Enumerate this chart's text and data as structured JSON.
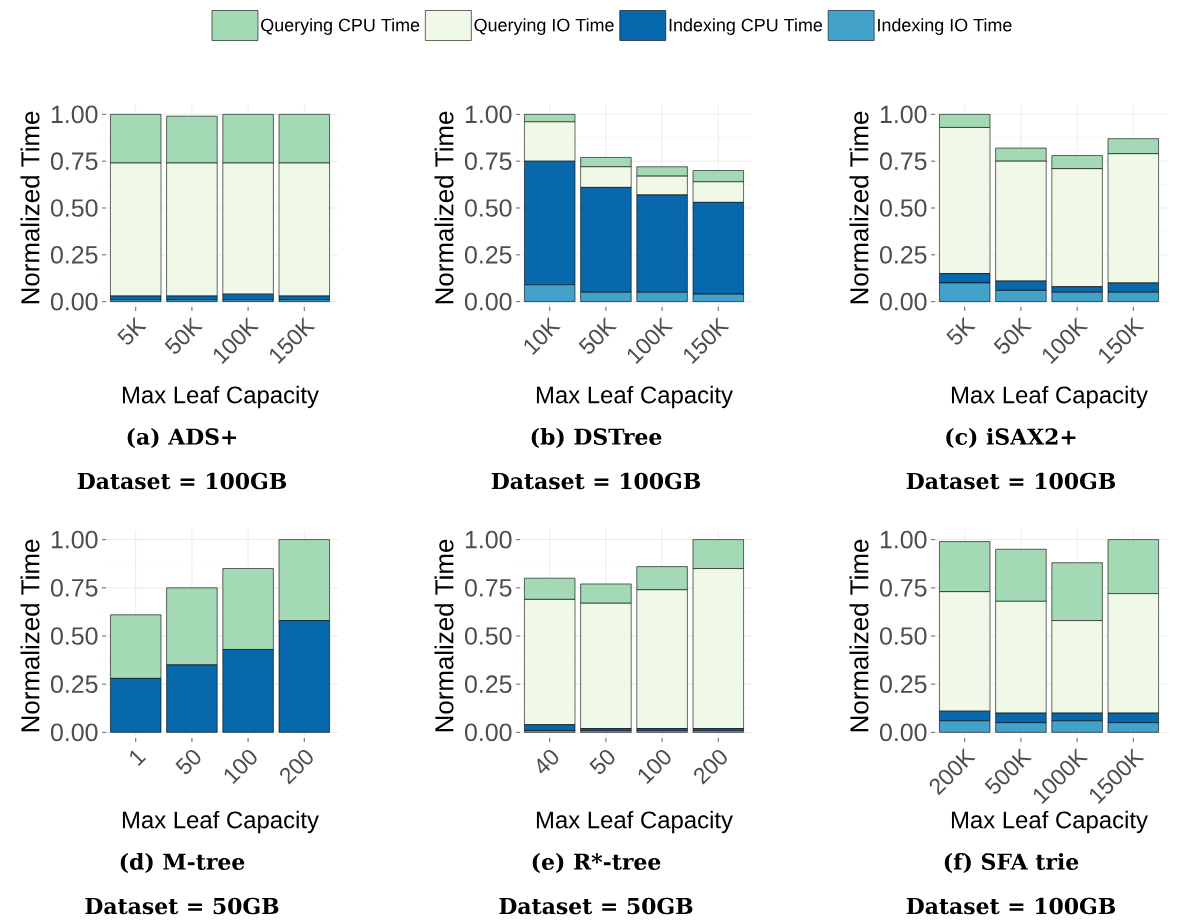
{
  "chart_data": [
    {
      "type": "bar",
      "stacked": true,
      "title": "(a) ADS+",
      "subtitle": "Dataset = 100GB",
      "xlabel": "Max Leaf Capacity",
      "ylabel": "Normalized Time",
      "categories": [
        "5K",
        "50K",
        "100K",
        "150K"
      ],
      "ylim": [
        -0.05,
        1.05
      ],
      "yticks": [
        {
          "value": 0,
          "label": "0.00"
        },
        {
          "value": 0.25,
          "label": "0.25"
        },
        {
          "value": 0.5,
          "label": "0.50"
        },
        {
          "value": 0.75,
          "label": "0.75"
        },
        {
          "value": 1,
          "label": "1.00"
        }
      ],
      "grid": true,
      "legend": "top",
      "series": [
        {
          "name": "Indexing IO Time",
          "color": "#43a2ca",
          "values": [
            0.01,
            0.01,
            0.01,
            0.01
          ]
        },
        {
          "name": "Indexing CPU Time",
          "color": "#0868ac",
          "values": [
            0.02,
            0.02,
            0.03,
            0.02
          ]
        },
        {
          "name": "Querying IO Time",
          "color": "#f0f9e8",
          "values": [
            0.71,
            0.71,
            0.7,
            0.71
          ]
        },
        {
          "name": "Querying CPU Time",
          "color": "#a3dab5",
          "values": [
            0.26,
            0.25,
            0.26,
            0.26
          ]
        }
      ]
    },
    {
      "type": "bar",
      "stacked": true,
      "title": "(b) DSTree",
      "subtitle": "Dataset = 100GB",
      "xlabel": "Max Leaf Capacity",
      "ylabel": "Normalized Time",
      "categories": [
        "10K",
        "50K",
        "100K",
        "150K"
      ],
      "ylim": [
        -0.05,
        1.05
      ],
      "yticks": [
        {
          "value": 0,
          "label": "0.00"
        },
        {
          "value": 0.25,
          "label": "0.25"
        },
        {
          "value": 0.5,
          "label": "0.50"
        },
        {
          "value": 0.75,
          "label": "0.75"
        },
        {
          "value": 1,
          "label": "1.00"
        }
      ],
      "grid": true,
      "series": [
        {
          "color": "#43a2ca",
          "values": [
            0.09,
            0.05,
            0.05,
            0.04
          ]
        },
        {
          "color": "#0868ac",
          "values": [
            0.66,
            0.56,
            0.52,
            0.49
          ]
        },
        {
          "color": "#f0f9e8",
          "values": [
            0.21,
            0.11,
            0.1,
            0.11
          ]
        },
        {
          "color": "#a3dab5",
          "values": [
            0.04,
            0.05,
            0.05,
            0.06
          ]
        }
      ]
    },
    {
      "type": "bar",
      "stacked": true,
      "title": "(c) iSAX2+",
      "subtitle": "Dataset = 100GB",
      "xlabel": "Max Leaf Capacity",
      "ylabel": "Normalized Time",
      "categories": [
        "5K",
        "50K",
        "100K",
        "150K"
      ],
      "ylim": [
        -0.05,
        1.05
      ],
      "yticks": [
        {
          "value": 0,
          "label": "0.00"
        },
        {
          "value": 0.25,
          "label": "0.25"
        },
        {
          "value": 0.5,
          "label": "0.50"
        },
        {
          "value": 0.75,
          "label": "0.75"
        },
        {
          "value": 1,
          "label": "1.00"
        }
      ],
      "grid": true,
      "series": [
        {
          "color": "#43a2ca",
          "values": [
            0.1,
            0.06,
            0.05,
            0.05
          ]
        },
        {
          "color": "#0868ac",
          "values": [
            0.05,
            0.05,
            0.03,
            0.05
          ]
        },
        {
          "color": "#f0f9e8",
          "values": [
            0.78,
            0.64,
            0.63,
            0.69
          ]
        },
        {
          "color": "#a3dab5",
          "values": [
            0.07,
            0.07,
            0.07,
            0.08
          ]
        }
      ]
    },
    {
      "type": "bar",
      "stacked": true,
      "title": "(d) M-tree",
      "subtitle": "Dataset = 50GB",
      "xlabel": "Max Leaf Capacity",
      "ylabel": "Normalized Time",
      "categories": [
        "1",
        "50",
        "100",
        "200"
      ],
      "ylim": [
        -0.05,
        1.05
      ],
      "yticks": [
        {
          "value": 0,
          "label": "0.00"
        },
        {
          "value": 0.25,
          "label": "0.25"
        },
        {
          "value": 0.5,
          "label": "0.50"
        },
        {
          "value": 0.75,
          "label": "0.75"
        },
        {
          "value": 1,
          "label": "1.00"
        }
      ],
      "grid": true,
      "series": [
        {
          "color": "#0868ac",
          "values": [
            0.28,
            0.35,
            0.43,
            0.58
          ]
        },
        {
          "color": "#a3dab5",
          "values": [
            0.33,
            0.4,
            0.42,
            0.42
          ]
        }
      ]
    },
    {
      "type": "bar",
      "stacked": true,
      "title": "(e) R*-tree",
      "subtitle": "Dataset = 50GB",
      "xlabel": "Max Leaf Capacity",
      "ylabel": "Normalized Time",
      "categories": [
        "40",
        "50",
        "100",
        "200"
      ],
      "ylim": [
        -0.05,
        1.05
      ],
      "yticks": [
        {
          "value": 0,
          "label": "0.00"
        },
        {
          "value": 0.25,
          "label": "0.25"
        },
        {
          "value": 0.5,
          "label": "0.50"
        },
        {
          "value": 0.75,
          "label": "0.75"
        },
        {
          "value": 1,
          "label": "1.00"
        }
      ],
      "grid": true,
      "series": [
        {
          "color": "#43a2ca",
          "values": [
            0.01,
            0.01,
            0.01,
            0.01
          ]
        },
        {
          "color": "#0868ac",
          "values": [
            0.03,
            0.01,
            0.01,
            0.01
          ]
        },
        {
          "color": "#f0f9e8",
          "values": [
            0.65,
            0.65,
            0.72,
            0.83
          ]
        },
        {
          "color": "#a3dab5",
          "values": [
            0.11,
            0.1,
            0.12,
            0.15
          ]
        }
      ]
    },
    {
      "type": "bar",
      "stacked": true,
      "title": "(f) SFA trie",
      "subtitle": "Dataset = 100GB",
      "xlabel": "Max Leaf Capacity",
      "ylabel": "Normalized Time",
      "categories": [
        "200K",
        "500K",
        "1000K",
        "1500K"
      ],
      "ylim": [
        -0.05,
        1.05
      ],
      "yticks": [
        {
          "value": 0,
          "label": "0.00"
        },
        {
          "value": 0.25,
          "label": "0.25"
        },
        {
          "value": 0.5,
          "label": "0.50"
        },
        {
          "value": 0.75,
          "label": "0.75"
        },
        {
          "value": 1,
          "label": "1.00"
        }
      ],
      "grid": true,
      "series": [
        {
          "color": "#43a2ca",
          "values": [
            0.06,
            0.05,
            0.06,
            0.05
          ]
        },
        {
          "color": "#0868ac",
          "values": [
            0.05,
            0.05,
            0.04,
            0.05
          ]
        },
        {
          "color": "#f0f9e8",
          "values": [
            0.62,
            0.58,
            0.48,
            0.62
          ]
        },
        {
          "color": "#a3dab5",
          "values": [
            0.26,
            0.27,
            0.3,
            0.28
          ]
        }
      ]
    }
  ]
}
